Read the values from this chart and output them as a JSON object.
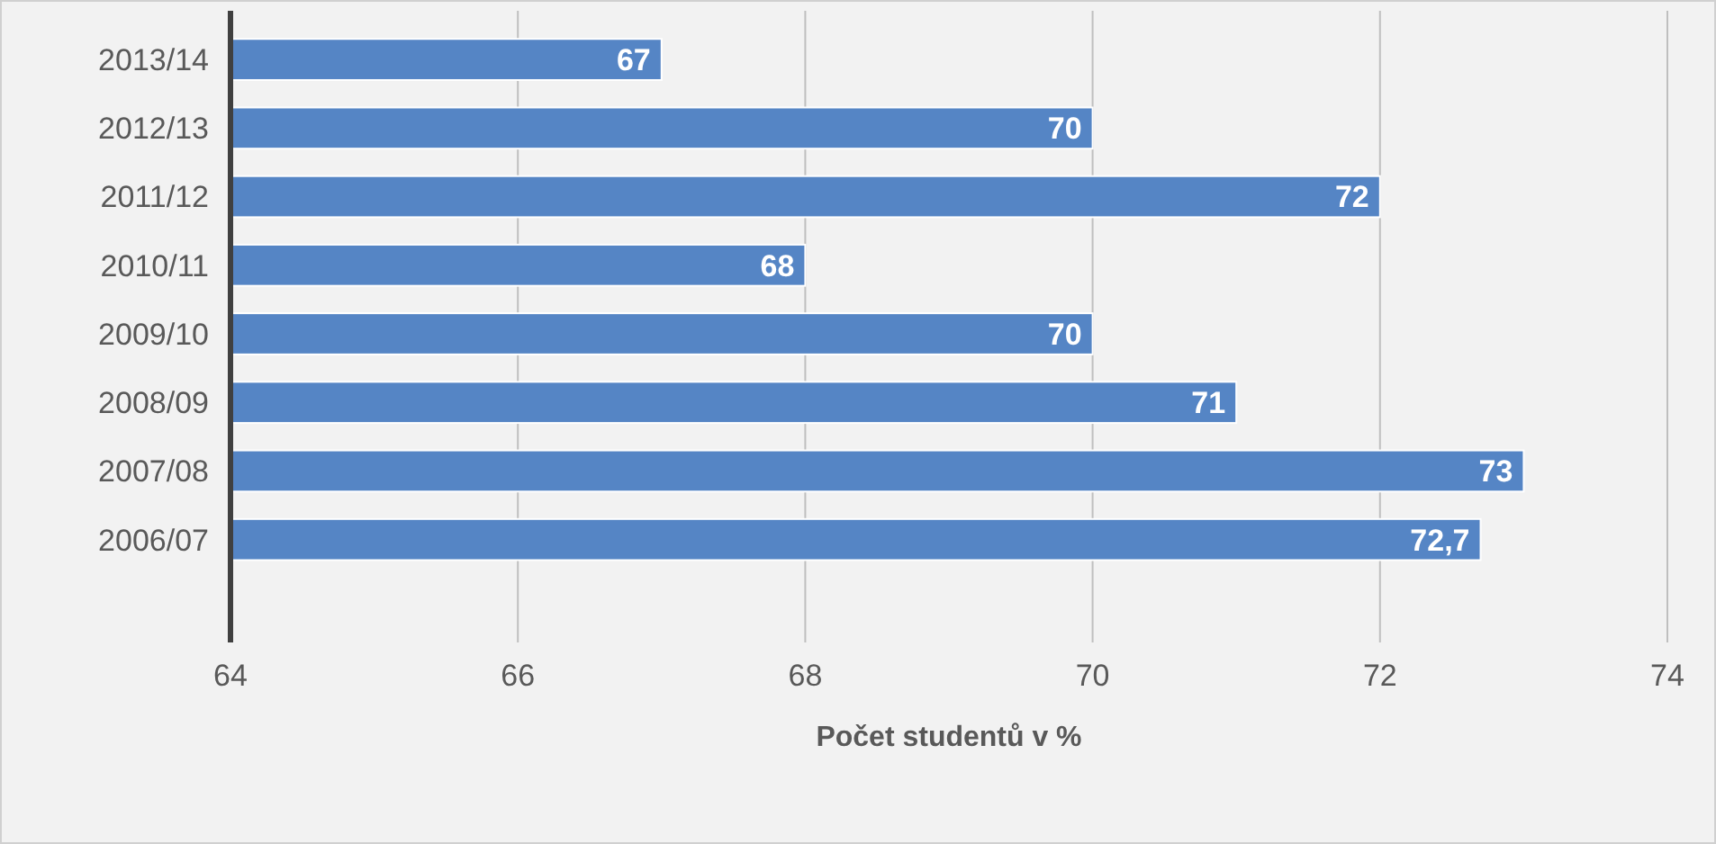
{
  "chart_data": {
    "type": "bar",
    "orientation": "horizontal",
    "xlabel": "Počet studentů v %",
    "categories": [
      "2013/14",
      "2012/13",
      "2011/12",
      "2010/11",
      "2009/10",
      "2008/09",
      "2007/08",
      "2006/07",
      null
    ],
    "values": [
      67,
      70,
      72,
      68,
      70,
      71,
      73,
      72.7,
      null
    ],
    "value_labels": [
      "67",
      "70",
      "72",
      "68",
      "70",
      "71",
      "73",
      "72,7",
      null
    ],
    "color": "#5585c5",
    "xlim": [
      64,
      74
    ],
    "xticks": [
      64,
      66,
      68,
      70,
      72,
      74
    ],
    "grid": "x"
  }
}
